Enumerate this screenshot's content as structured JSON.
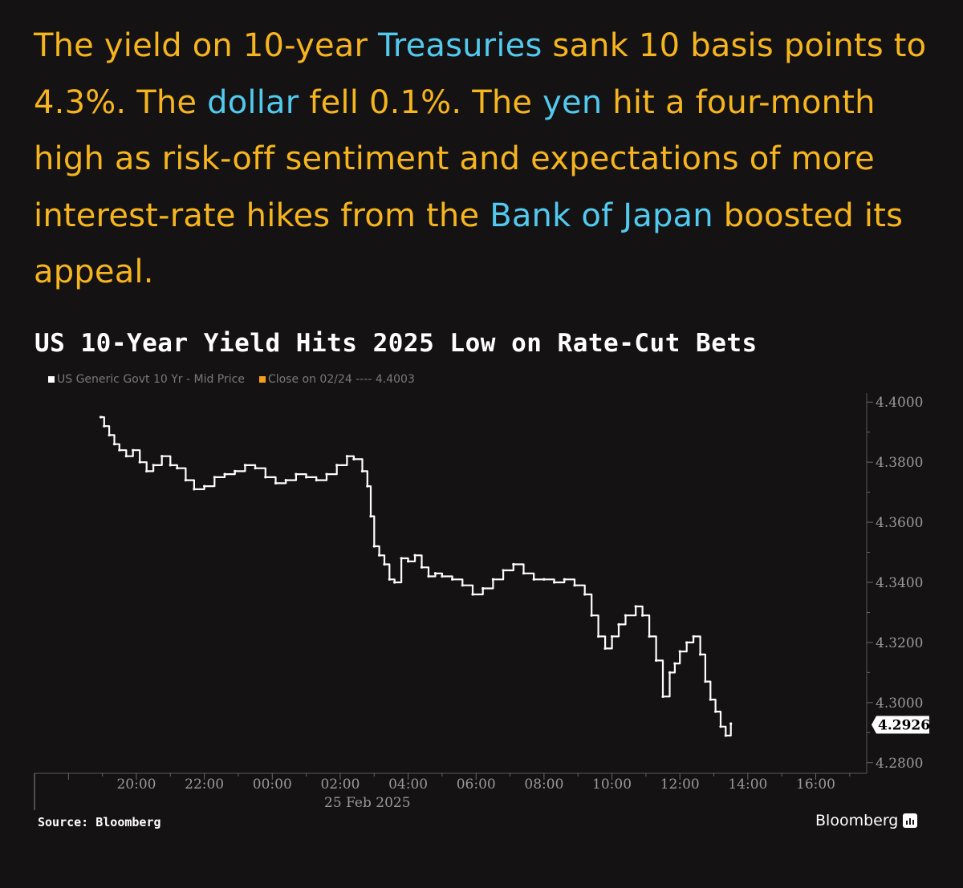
{
  "story": {
    "segments": [
      {
        "text": "The yield on 10-year ",
        "hl": false
      },
      {
        "text": "Treasuries",
        "hl": true
      },
      {
        "text": " sank 10 basis points to 4.3%. The ",
        "hl": false
      },
      {
        "text": "dollar",
        "hl": true
      },
      {
        "text": " fell 0.1%. The ",
        "hl": false
      },
      {
        "text": "yen",
        "hl": true
      },
      {
        "text": " hit a four-month high as risk-off sentiment and expectations of more interest-rate hikes from the ",
        "hl": false
      },
      {
        "text": "Bank of Japan",
        "hl": true
      },
      {
        "text": " boosted its appeal.",
        "hl": false
      }
    ]
  },
  "colors": {
    "background": "#141212",
    "story_text": "#f6b51e",
    "link_text": "#52c9ee",
    "series_line": "#ffffff",
    "close_line": "#f6a01a"
  },
  "legend": {
    "series_label": "US Generic Govt 10 Yr - Mid Price",
    "close_label": "Close on 02/24 ---- 4.4003"
  },
  "source": "Source: Bloomberg",
  "brand": "Bloomberg",
  "chart_data": {
    "type": "line",
    "title": "US 10-Year Yield Hits 2025 Low on Rate-Cut Bets",
    "xlabel": "25 Feb 2025",
    "ylabel": "",
    "x_tick_labels": [
      "20:00",
      "22:00",
      "00:00",
      "02:00",
      "04:00",
      "06:00",
      "08:00",
      "10:00",
      "12:00",
      "14:00",
      "16:00"
    ],
    "x_unit": "hours since 18:00 on 24 Feb 2025",
    "xlim": [
      -1.0,
      23.5
    ],
    "x_ticks": [
      2,
      4,
      6,
      8,
      10,
      12,
      14,
      16,
      18,
      20,
      22
    ],
    "ylim": [
      4.277,
      4.403
    ],
    "y_ticks": [
      4.28,
      4.3,
      4.32,
      4.34,
      4.36,
      4.38,
      4.4
    ],
    "y_tick_labels": [
      "4.2800",
      "4.3000",
      "4.3200",
      "4.3400",
      "4.3600",
      "4.3800",
      "4.4000"
    ],
    "last_value_label": "4.2926",
    "last_value": 4.2926,
    "series": [
      {
        "name": "US Generic Govt 10 Yr - Mid Price",
        "x": [
          0.95,
          1.05,
          1.2,
          1.35,
          1.5,
          1.7,
          1.9,
          2.1,
          2.3,
          2.5,
          2.75,
          3.0,
          3.2,
          3.45,
          3.7,
          4.0,
          4.3,
          4.6,
          4.9,
          5.2,
          5.5,
          5.8,
          6.1,
          6.4,
          6.7,
          7.0,
          7.3,
          7.6,
          7.9,
          8.2,
          8.4,
          8.65,
          8.8,
          8.9,
          9.0,
          9.15,
          9.3,
          9.45,
          9.6,
          9.8,
          10.0,
          10.2,
          10.4,
          10.6,
          10.8,
          11.0,
          11.3,
          11.6,
          11.9,
          12.2,
          12.5,
          12.8,
          13.1,
          13.4,
          13.7,
          14.0,
          14.3,
          14.6,
          14.9,
          15.2,
          15.4,
          15.6,
          15.8,
          16.0,
          16.2,
          16.4,
          16.7,
          16.9,
          17.1,
          17.3,
          17.5,
          17.7,
          17.85,
          18.0,
          18.2,
          18.4,
          18.6,
          18.75,
          18.9,
          19.05,
          19.2,
          19.35,
          19.5
        ],
        "values": [
          4.395,
          4.392,
          4.389,
          4.386,
          4.384,
          4.382,
          4.384,
          4.38,
          4.377,
          4.379,
          4.382,
          4.379,
          4.378,
          4.374,
          4.371,
          4.372,
          4.375,
          4.376,
          4.377,
          4.379,
          4.378,
          4.375,
          4.373,
          4.374,
          4.376,
          4.375,
          4.374,
          4.376,
          4.379,
          4.382,
          4.381,
          4.377,
          4.372,
          4.362,
          4.352,
          4.349,
          4.346,
          4.341,
          4.34,
          4.348,
          4.347,
          4.349,
          4.345,
          4.342,
          4.343,
          4.342,
          4.341,
          4.339,
          4.336,
          4.338,
          4.341,
          4.344,
          4.346,
          4.343,
          4.341,
          4.341,
          4.34,
          4.341,
          4.339,
          4.336,
          4.329,
          4.322,
          4.318,
          4.322,
          4.326,
          4.329,
          4.332,
          4.329,
          4.322,
          4.314,
          4.302,
          4.31,
          4.313,
          4.317,
          4.32,
          4.322,
          4.316,
          4.307,
          4.301,
          4.297,
          4.292,
          4.289,
          4.293
        ]
      }
    ]
  }
}
